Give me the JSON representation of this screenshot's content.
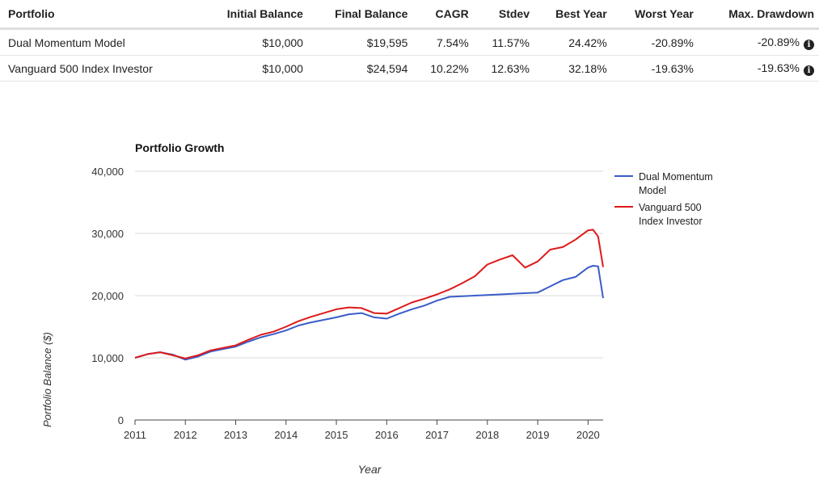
{
  "table": {
    "headers": [
      "Portfolio",
      "Initial Balance",
      "Final Balance",
      "CAGR",
      "Stdev",
      "Best Year",
      "Worst Year",
      "Max. Drawdown"
    ],
    "rows": [
      {
        "portfolio": "Dual Momentum Model",
        "initial": "$10,000",
        "final": "$19,595",
        "cagr": "7.54%",
        "stdev": "11.57%",
        "best": "24.42%",
        "worst": "-20.89%",
        "drawdown": "-20.89%"
      },
      {
        "portfolio": "Vanguard 500 Index Investor",
        "initial": "$10,000",
        "final": "$24,594",
        "cagr": "10.22%",
        "stdev": "12.63%",
        "best": "32.18%",
        "worst": "-19.63%",
        "drawdown": "-19.63%"
      }
    ]
  },
  "icons": {
    "drawdown_info": "info-circle-icon"
  },
  "chart_data": {
    "type": "line",
    "title": "Portfolio Growth",
    "xlabel": "Year",
    "ylabel": "Portfolio Balance ($)",
    "ylim": [
      0,
      40000
    ],
    "xlim": [
      2011,
      2020.3
    ],
    "yticks": [
      0,
      10000,
      20000,
      30000,
      40000
    ],
    "ytick_labels": [
      "0",
      "10,000",
      "20,000",
      "30,000",
      "40,000"
    ],
    "xticks": [
      2011,
      2012,
      2013,
      2014,
      2015,
      2016,
      2017,
      2018,
      2019,
      2020
    ],
    "xtick_labels": [
      "2011",
      "2012",
      "2013",
      "2014",
      "2015",
      "2016",
      "2017",
      "2018",
      "2019",
      "2020"
    ],
    "grid": true,
    "legend_position": "right",
    "series": [
      {
        "name": "Dual Momentum Model",
        "color": "#3a5dc8",
        "x": [
          2011.0,
          2011.25,
          2011.5,
          2011.75,
          2012.0,
          2012.25,
          2012.5,
          2012.75,
          2013.0,
          2013.25,
          2013.5,
          2013.75,
          2014.0,
          2014.25,
          2014.5,
          2014.75,
          2015.0,
          2015.25,
          2015.5,
          2015.75,
          2016.0,
          2016.25,
          2016.5,
          2016.75,
          2017.0,
          2017.25,
          2017.5,
          2018.0,
          2018.5,
          2019.0,
          2019.25,
          2019.5,
          2019.75,
          2020.0,
          2020.1,
          2020.2,
          2020.3
        ],
        "y": [
          10000,
          10600,
          10900,
          10500,
          9700,
          10200,
          11000,
          11400,
          11800,
          12600,
          13300,
          13800,
          14400,
          15200,
          15700,
          16100,
          16500,
          17000,
          17200,
          16500,
          16300,
          17100,
          17800,
          18400,
          19200,
          19800,
          19900,
          20100,
          20300,
          20500,
          21500,
          22500,
          23000,
          24500,
          24800,
          24700,
          19595
        ]
      },
      {
        "name": "Vanguard 500 Index Investor",
        "color": "#dd1a1a",
        "x": [
          2011.0,
          2011.25,
          2011.5,
          2011.75,
          2012.0,
          2012.25,
          2012.5,
          2012.75,
          2013.0,
          2013.25,
          2013.5,
          2013.75,
          2014.0,
          2014.25,
          2014.5,
          2014.75,
          2015.0,
          2015.25,
          2015.5,
          2015.75,
          2016.0,
          2016.25,
          2016.5,
          2016.75,
          2017.0,
          2017.25,
          2017.5,
          2017.75,
          2018.0,
          2018.25,
          2018.5,
          2018.75,
          2019.0,
          2019.25,
          2019.5,
          2019.75,
          2020.0,
          2020.1,
          2020.2,
          2020.3
        ],
        "y": [
          10000,
          10600,
          10900,
          10400,
          9900,
          10400,
          11200,
          11600,
          12000,
          12900,
          13700,
          14200,
          15000,
          15900,
          16600,
          17200,
          17800,
          18100,
          18000,
          17200,
          17100,
          18000,
          18900,
          19500,
          20200,
          21000,
          22000,
          23100,
          25000,
          25800,
          26500,
          24500,
          25500,
          27400,
          27800,
          29000,
          30500,
          30600,
          29500,
          24594
        ]
      }
    ]
  }
}
